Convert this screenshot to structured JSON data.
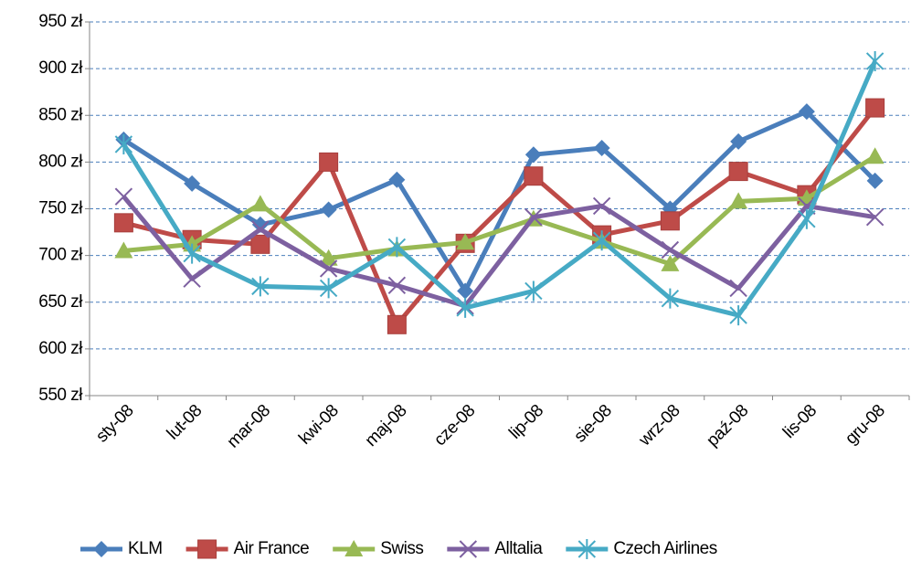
{
  "chart_data": {
    "type": "line",
    "categories": [
      "sty-08",
      "lut-08",
      "mar-08",
      "kwi-08",
      "maj-08",
      "cze-08",
      "lip-08",
      "sie-08",
      "wrz-08",
      "paź-08",
      "lis-08",
      "gru-08"
    ],
    "ylim": [
      550,
      950
    ],
    "yticks": [
      {
        "value": 550,
        "label": "550 zł"
      },
      {
        "value": 600,
        "label": "600 zł"
      },
      {
        "value": 650,
        "label": "650 zł"
      },
      {
        "value": 700,
        "label": "700 zł"
      },
      {
        "value": 750,
        "label": "750 zł"
      },
      {
        "value": 800,
        "label": "800 zł"
      },
      {
        "value": 850,
        "label": "850 zł"
      },
      {
        "value": 900,
        "label": "900 zł"
      },
      {
        "value": 950,
        "label": "950 zł"
      }
    ],
    "grid": true,
    "legend": "bottom",
    "series": [
      {
        "name": "KLM",
        "color": "#4a7ebb",
        "marker": "diamond",
        "values": [
          824,
          777,
          733,
          749,
          781,
          662,
          808,
          815,
          750,
          822,
          854,
          780
        ]
      },
      {
        "name": "Air France",
        "color": "#be4b48",
        "marker": "square",
        "values": [
          735,
          717,
          712,
          800,
          626,
          713,
          785,
          722,
          737,
          790,
          765,
          858
        ]
      },
      {
        "name": "Swiss",
        "color": "#98b954",
        "marker": "triangle",
        "values": [
          705,
          712,
          755,
          697,
          707,
          714,
          739,
          715,
          691,
          758,
          761,
          806
        ]
      },
      {
        "name": "Alltalia",
        "color": "#7d60a0",
        "marker": "x",
        "values": [
          763,
          675,
          728,
          686,
          668,
          646,
          741,
          753,
          706,
          665,
          753,
          741
        ]
      },
      {
        "name": "Czech Airlines",
        "color": "#46aac5",
        "marker": "star",
        "values": [
          819,
          702,
          667,
          665,
          709,
          644,
          662,
          716,
          654,
          636,
          739,
          908
        ]
      }
    ]
  }
}
